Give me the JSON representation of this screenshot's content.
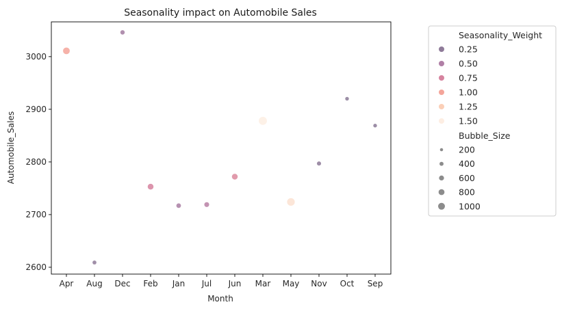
{
  "chart_data": {
    "type": "scatter",
    "title": "Seasonality impact on Automobile Sales",
    "xlabel": "Month",
    "ylabel": "Automobile_Sales",
    "categories": [
      "Apr",
      "Aug",
      "Dec",
      "Feb",
      "Jan",
      "Jul",
      "Jun",
      "Mar",
      "May",
      "Nov",
      "Oct",
      "Sep"
    ],
    "yticks": [
      2600,
      2700,
      2800,
      2900,
      3000
    ],
    "ylim": [
      2587,
      3066
    ],
    "grid": false,
    "legend_position": "outside-right",
    "points": [
      {
        "x": "Apr",
        "y": 3011,
        "seasonality_weight": 1.0,
        "bubble_size": 800
      },
      {
        "x": "Aug",
        "y": 2609,
        "seasonality_weight": 0.25,
        "bubble_size": 200
      },
      {
        "x": "Dec",
        "y": 3046,
        "seasonality_weight": 0.4,
        "bubble_size": 300
      },
      {
        "x": "Feb",
        "y": 2753,
        "seasonality_weight": 0.75,
        "bubble_size": 600
      },
      {
        "x": "Jan",
        "y": 2717,
        "seasonality_weight": 0.45,
        "bubble_size": 350
      },
      {
        "x": "Jul",
        "y": 2719,
        "seasonality_weight": 0.55,
        "bubble_size": 400
      },
      {
        "x": "Jun",
        "y": 2772,
        "seasonality_weight": 0.8,
        "bubble_size": 600
      },
      {
        "x": "Mar",
        "y": 2878,
        "seasonality_weight": 1.5,
        "bubble_size": 1100
      },
      {
        "x": "May",
        "y": 2724,
        "seasonality_weight": 1.4,
        "bubble_size": 1000
      },
      {
        "x": "Nov",
        "y": 2797,
        "seasonality_weight": 0.2,
        "bubble_size": 250
      },
      {
        "x": "Oct",
        "y": 2920,
        "seasonality_weight": 0.15,
        "bubble_size": 150
      },
      {
        "x": "Sep",
        "y": 2869,
        "seasonality_weight": 0.15,
        "bubble_size": 150
      }
    ],
    "legend": {
      "hue_title": "Seasonality_Weight",
      "hue_entries": [
        {
          "label": "0.25",
          "color": "#8f7b99"
        },
        {
          "label": "0.50",
          "color": "#b07fa6"
        },
        {
          "label": "0.75",
          "color": "#d6839f"
        },
        {
          "label": "1.00",
          "color": "#f4a59a"
        },
        {
          "label": "1.25",
          "color": "#fbcfb7"
        },
        {
          "label": "1.50",
          "color": "#fdeee3"
        }
      ],
      "size_title": "Bubble_Size",
      "size_entries": [
        {
          "label": "200",
          "value": 200
        },
        {
          "label": "400",
          "value": 400
        },
        {
          "label": "600",
          "value": 600
        },
        {
          "label": "800",
          "value": 800
        },
        {
          "label": "1000",
          "value": 1000
        }
      ],
      "size_color": "#8c8c8c"
    }
  }
}
